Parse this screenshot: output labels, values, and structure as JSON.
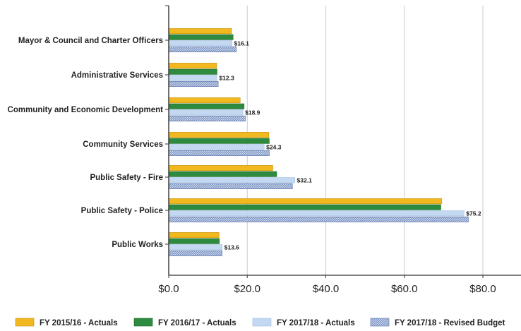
{
  "chart_data": {
    "type": "bar",
    "orientation": "horizontal",
    "categories": [
      "Mayor & Council and Charter Officers",
      "Administrative Services",
      "Community and Economic Development",
      "Community Services",
      "Public Safety - Fire",
      "Public Safety - Police",
      "Public Works"
    ],
    "series": [
      {
        "name": "FY 2015/16 - Actuals",
        "color": "#f2b81f",
        "values": [
          16.0,
          12.2,
          18.2,
          25.5,
          26.5,
          69.5,
          12.8
        ]
      },
      {
        "name": "FY 2016/17 - Actuals",
        "color": "#2e8a3e",
        "values": [
          16.4,
          12.3,
          19.2,
          25.6,
          27.5,
          69.3,
          12.9
        ]
      },
      {
        "name": "FY 2017/18 - Actuals",
        "color": "#c3d9f1",
        "values": [
          16.1,
          12.3,
          18.9,
          24.3,
          32.1,
          75.2,
          13.6
        ]
      },
      {
        "name": "FY 2017/18 - Revised Budget",
        "color": "#7f97c6",
        "values": [
          17.2,
          12.6,
          19.5,
          25.6,
          31.5,
          76.3,
          13.6
        ]
      }
    ],
    "data_labels": [
      "$16.1",
      "$12.3",
      "$18.9",
      "$24.3",
      "$32.1",
      "$75.2",
      "$13.6"
    ],
    "x_ticks": [
      "$0.0",
      "$20.0",
      "$40.0",
      "$60.0",
      "$80.0"
    ],
    "xlim": [
      0,
      90
    ],
    "grid": true,
    "legend_position": "bottom"
  }
}
